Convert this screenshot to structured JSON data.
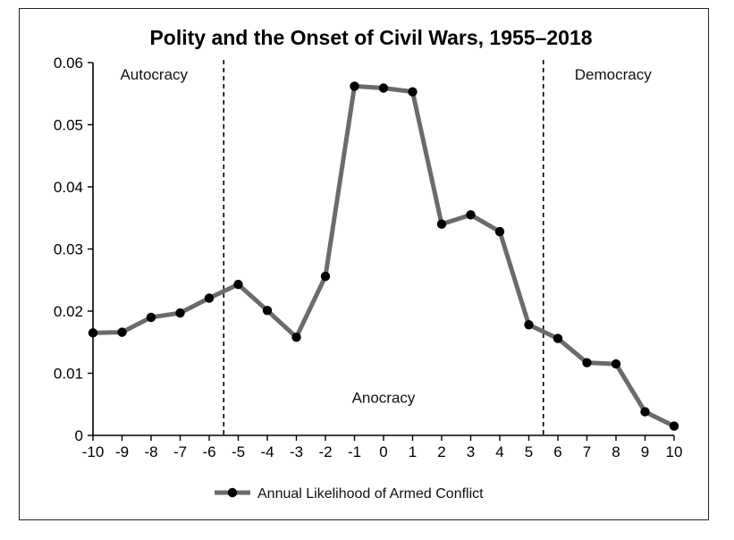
{
  "chart_data": {
    "type": "line",
    "title": "Polity and the Onset of Civil Wars, 1955–2018",
    "xlabel": "",
    "ylabel": "",
    "x": [
      -10,
      -9,
      -8,
      -7,
      -6,
      -5,
      -4,
      -3,
      -2,
      -1,
      0,
      1,
      2,
      3,
      4,
      5,
      6,
      7,
      8,
      9,
      10
    ],
    "series": [
      {
        "name": "Annual Likelihood of Armed Conflict",
        "values": [
          0.0165,
          0.0166,
          0.019,
          0.0197,
          0.0221,
          0.0243,
          0.0201,
          0.0158,
          0.0256,
          0.0562,
          0.0559,
          0.0553,
          0.034,
          0.0355,
          0.0328,
          0.0178,
          0.0156,
          0.0117,
          0.0115,
          0.0038,
          0.0015
        ],
        "color": "#6b6b6b",
        "marker_color": "#000000"
      }
    ],
    "xlim": [
      -10,
      10
    ],
    "ylim": [
      0,
      0.06
    ],
    "xticks": [
      "-10",
      "-9",
      "-8",
      "-7",
      "-6",
      "-5",
      "-4",
      "-3",
      "-2",
      "-1",
      "0",
      "1",
      "2",
      "3",
      "4",
      "5",
      "6",
      "7",
      "8",
      "9",
      "10"
    ],
    "yticks": [
      "0",
      "0.01",
      "0.02",
      "0.03",
      "0.04",
      "0.05",
      "0.06"
    ],
    "thresholds": [
      -5.5,
      5.5
    ],
    "regions": [
      {
        "label": "Autocracy",
        "x": -7.9,
        "y": 0.058
      },
      {
        "label": "Anocracy",
        "x": 0,
        "y": 0.006
      },
      {
        "label": "Democracy",
        "x": 7.9,
        "y": 0.058
      }
    ],
    "grid": false,
    "legend": "bottom-center"
  }
}
